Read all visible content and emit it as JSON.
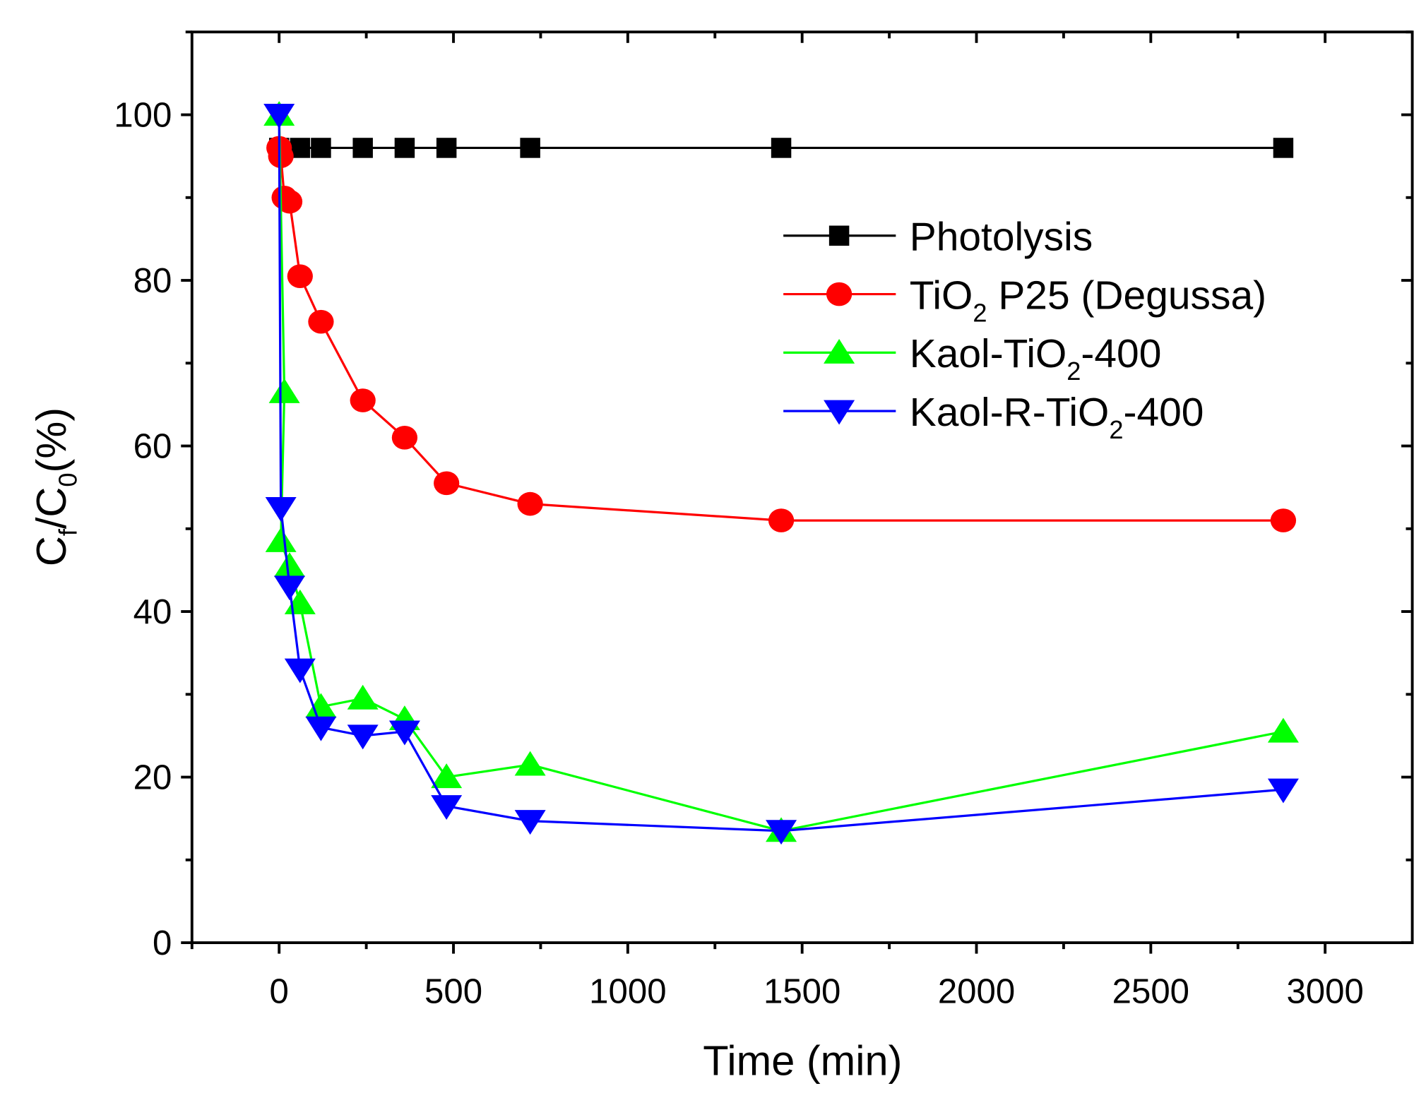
{
  "chart_data": {
    "type": "line",
    "title": "",
    "xlabel": "Time (min)",
    "ylabel_main": "C",
    "ylabel_sub_f": "f",
    "ylabel_slash": "/C",
    "ylabel_sub_0": "0",
    "ylabel_tail": "(%)",
    "xlim": [
      -250,
      3250
    ],
    "ylim": [
      0,
      110
    ],
    "xticks": [
      0,
      500,
      1000,
      1500,
      2000,
      2500,
      3000
    ],
    "xtick_labels": [
      "0",
      "500",
      "1000",
      "1500",
      "2000",
      "2500",
      "3000"
    ],
    "yticks": [
      0,
      20,
      40,
      60,
      80,
      100
    ],
    "ytick_labels": [
      "0",
      "20",
      "40",
      "60",
      "80",
      "100"
    ],
    "grid": false,
    "legend_placement": "top-right",
    "series": [
      {
        "name": "Photolysis",
        "name_parts": [
          "Photolysis",
          "",
          ""
        ],
        "color": "#000000",
        "marker": "square",
        "x": [
          0,
          60,
          120,
          240,
          360,
          480,
          720,
          1440,
          2880
        ],
        "y": [
          96,
          96,
          96,
          96,
          96,
          96,
          96,
          96,
          96
        ]
      },
      {
        "name": "TiO2 P25 (Degussa)",
        "name_parts": [
          "TiO",
          "2",
          " P25 (Degussa)"
        ],
        "color": "#ff0000",
        "marker": "circle",
        "x": [
          0,
          5,
          15,
          30,
          60,
          120,
          240,
          360,
          480,
          720,
          1440,
          2880
        ],
        "y": [
          96,
          95,
          90,
          89.5,
          80.5,
          75,
          65.5,
          61,
          55.5,
          53,
          51,
          51
        ]
      },
      {
        "name": "Kaol-TiO2-400",
        "name_parts": [
          "Kaol-TiO",
          "2",
          "-400"
        ],
        "color": "#00ff00",
        "marker": "triangle-up",
        "x": [
          0,
          15,
          5,
          30,
          60,
          120,
          240,
          360,
          480,
          720,
          1440,
          2880
        ],
        "y": [
          100,
          66.5,
          48.5,
          45.5,
          41,
          28.5,
          29.5,
          27,
          20,
          21.5,
          13.5,
          25.5
        ]
      },
      {
        "name": "Kaol-R-TiO2-400",
        "name_parts": [
          "Kaol-R-TiO",
          "2",
          "-400"
        ],
        "color": "#0000ff",
        "marker": "triangle-down",
        "x": [
          0,
          5,
          30,
          60,
          120,
          240,
          360,
          480,
          720,
          1440,
          2880
        ],
        "y": [
          100,
          52.5,
          43,
          33,
          26,
          25,
          25.5,
          16.5,
          14.7,
          13.5,
          18.5
        ]
      }
    ]
  }
}
